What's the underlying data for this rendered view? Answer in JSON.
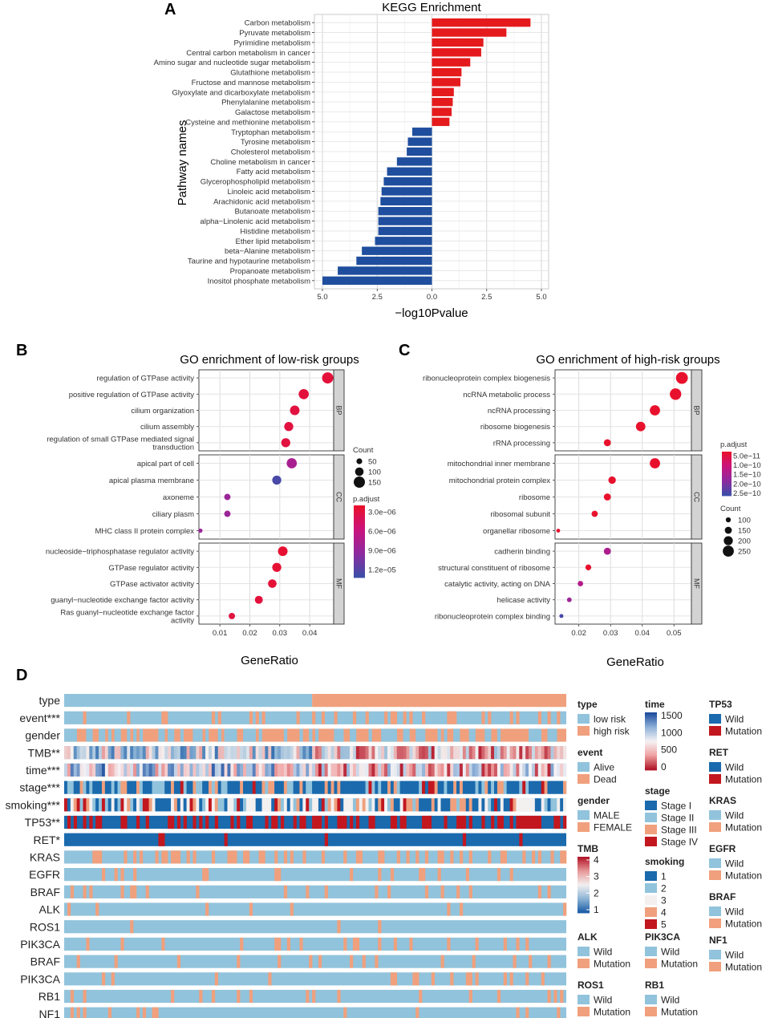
{
  "colors": {
    "kegg_pos": "#e41a1c",
    "kegg_neg": "#1f4e9e",
    "grid": "#dcdcdc",
    "panel_bg": "#ffffff",
    "strip_bg": "#d3d3d3",
    "low_risk": "#91c3dc",
    "high_risk": "#f0a07d",
    "wild": "#1a6aad",
    "mutation": "#c2171f",
    "light_blue": "#91c3dc",
    "salmon": "#f0a07d"
  },
  "panel_labels": {
    "a": "A",
    "b": "B",
    "c": "C",
    "d": "D"
  },
  "chart_data": [
    {
      "id": "kegg",
      "type": "bar",
      "orientation": "horizontal",
      "title": "KEGG Enrichment",
      "xlabel": "−log10Pvalue",
      "ylabel": "Pathway names",
      "xlim": [
        -5.0,
        5.0
      ],
      "xticks": [
        -5,
        -2.5,
        0,
        2.5,
        5
      ],
      "xtick_labels": [
        "5.0",
        "2.5",
        "0.0",
        "2.5",
        "5.0"
      ],
      "categories": [
        "Carbon metabolism",
        "Pyruvate metabolism",
        "Pyrimidine metabolism",
        "Central carbon metabolism in cancer",
        "Amino sugar and nucleotide sugar metabolism",
        "Glutathione metabolism",
        "Fructose and mannose metabolism",
        "Glyoxylate and dicarboxylate metabolism",
        "Phenylalanine metabolism",
        "Galactose metabolism",
        "Cysteine and methionine metabolism",
        "Tryptophan metabolism",
        "Tyrosine metabolism",
        "Cholesterol metabolism",
        "Choline metabolism in cancer",
        "Fatty acid metabolism",
        "Glycerophospholipid metabolism",
        "Linoleic acid metabolism",
        "Arachidonic acid metabolism",
        "Butanoate metabolism",
        "alpha−Linolenic acid metabolism",
        "Histidine metabolism",
        "Ether lipid metabolism",
        "beta−Alanine metabolism",
        "Taurine and hypotaurine metabolism",
        "Propanoate metabolism",
        "Inositol phosphate metabolism"
      ],
      "values": [
        4.5,
        3.4,
        2.35,
        2.25,
        1.75,
        1.35,
        1.3,
        1.0,
        0.95,
        0.9,
        0.8,
        -0.9,
        -1.1,
        -1.15,
        -1.6,
        -2.05,
        -2.2,
        -2.3,
        -2.35,
        -2.45,
        -2.45,
        -2.45,
        -2.6,
        -3.2,
        -3.45,
        -4.3,
        -5.0
      ]
    },
    {
      "id": "go_low",
      "type": "scatter",
      "title": "GO enrichment of low-risk groups",
      "xlabel": "GeneRatio",
      "xlim": [
        0.003,
        0.048
      ],
      "xticks": [
        0.01,
        0.02,
        0.03,
        0.04
      ],
      "xtick_labels": [
        "0.01",
        "0.02",
        "0.03",
        "0.04"
      ],
      "facets": [
        {
          "name": "BP",
          "terms": [
            {
              "label": [
                "regulation of GTPase activity"
              ],
              "x": 0.046,
              "count": 150,
              "padj": 3.5e-06
            },
            {
              "label": [
                "positive regulation of GTPase activity"
              ],
              "x": 0.038,
              "count": 130,
              "padj": 3.6e-06
            },
            {
              "label": [
                "cilium organization"
              ],
              "x": 0.035,
              "count": 120,
              "padj": 3.8e-06
            },
            {
              "label": [
                "cilium assembly"
              ],
              "x": 0.033,
              "count": 110,
              "padj": 3.8e-06
            },
            {
              "label": [
                "regulation of small GTPase mediated signal",
                "transduction"
              ],
              "x": 0.032,
              "count": 110,
              "padj": 3.8e-06
            }
          ]
        },
        {
          "name": "CC",
          "terms": [
            {
              "label": [
                "apical part of cell"
              ],
              "x": 0.034,
              "count": 130,
              "padj": 8.2e-06
            },
            {
              "label": [
                "apical plasma membrane"
              ],
              "x": 0.029,
              "count": 110,
              "padj": 1.25e-05
            },
            {
              "label": [
                "axoneme"
              ],
              "x": 0.0125,
              "count": 60,
              "padj": 9e-06
            },
            {
              "label": [
                "ciliary plasm"
              ],
              "x": 0.0125,
              "count": 60,
              "padj": 9e-06
            },
            {
              "label": [
                "MHC class II protein complex"
              ],
              "x": 0.0035,
              "count": 20,
              "padj": 9e-06
            }
          ]
        },
        {
          "name": "MF",
          "terms": [
            {
              "label": [
                "nucleoside−triphosphatase regulator activity"
              ],
              "x": 0.031,
              "count": 120,
              "padj": 3.2e-06
            },
            {
              "label": [
                "GTPase regulator activity"
              ],
              "x": 0.029,
              "count": 110,
              "padj": 3.3e-06
            },
            {
              "label": [
                "GTPase activator activity"
              ],
              "x": 0.0275,
              "count": 100,
              "padj": 3.4e-06
            },
            {
              "label": [
                "guanyl−nucleotide exchange factor activity"
              ],
              "x": 0.023,
              "count": 90,
              "padj": 3.6e-06
            },
            {
              "label": [
                "Ras guanyl−nucleotide exchange factor",
                "activity"
              ],
              "x": 0.014,
              "count": 60,
              "padj": 4e-06
            }
          ]
        }
      ],
      "size_legend": {
        "title": "Count",
        "values": [
          50,
          100,
          150
        ],
        "labels": [
          "50",
          "100",
          "150"
        ]
      },
      "color_legend": {
        "title": "p.adjust",
        "labels": [
          "3.0e−06",
          "6.0e−06",
          "9.0e−06",
          "1.2e−05"
        ],
        "min": 3e-06,
        "max": 1.3e-05
      }
    },
    {
      "id": "go_high",
      "type": "scatter",
      "title": "GO enrichment of high-risk groups",
      "xlabel": "GeneRatio",
      "xlim": [
        0.0125,
        0.0555
      ],
      "xticks": [
        0.02,
        0.03,
        0.04,
        0.05
      ],
      "xtick_labels": [
        "0.02",
        "0.03",
        "0.04",
        "0.05"
      ],
      "facets": [
        {
          "name": "BP",
          "terms": [
            {
              "label": [
                "ribonucleoprotein complex biogenesis"
              ],
              "x": 0.0525,
              "count": 270,
              "padj": 5e-11
            },
            {
              "label": [
                "ncRNA metabolic process"
              ],
              "x": 0.0505,
              "count": 260,
              "padj": 5e-11
            },
            {
              "label": [
                "ncRNA processing"
              ],
              "x": 0.044,
              "count": 230,
              "padj": 5e-11
            },
            {
              "label": [
                "ribosome biogenesis"
              ],
              "x": 0.0395,
              "count": 210,
              "padj": 5e-11
            },
            {
              "label": [
                "rRNA processing"
              ],
              "x": 0.029,
              "count": 150,
              "padj": 5e-11
            }
          ]
        },
        {
          "name": "CC",
          "terms": [
            {
              "label": [
                "mitochondrial inner membrane"
              ],
              "x": 0.044,
              "count": 230,
              "padj": 5e-11
            },
            {
              "label": [
                "mitochondrial protein complex"
              ],
              "x": 0.0305,
              "count": 160,
              "padj": 5e-11
            },
            {
              "label": [
                "ribosome"
              ],
              "x": 0.029,
              "count": 150,
              "padj": 5e-11
            },
            {
              "label": [
                "ribosomal subunit"
              ],
              "x": 0.025,
              "count": 130,
              "padj": 5e-11
            },
            {
              "label": [
                "organellar ribosome"
              ],
              "x": 0.0135,
              "count": 70,
              "padj": 5e-11
            }
          ]
        },
        {
          "name": "MF",
          "terms": [
            {
              "label": [
                "cadherin binding"
              ],
              "x": 0.029,
              "count": 150,
              "padj": 1.6e-10
            },
            {
              "label": [
                "structural constituent of ribosome"
              ],
              "x": 0.023,
              "count": 120,
              "padj": 5e-11
            },
            {
              "label": [
                "catalytic activity, acting on DNA"
              ],
              "x": 0.0205,
              "count": 110,
              "padj": 1.5e-10
            },
            {
              "label": [
                "helicase activity"
              ],
              "x": 0.017,
              "count": 90,
              "padj": 1.8e-10
            },
            {
              "label": [
                "ribonucleoprotein complex binding"
              ],
              "x": 0.0145,
              "count": 75,
              "padj": 2.6e-10
            }
          ]
        }
      ],
      "color_legend": {
        "title": "p.adjust",
        "labels": [
          "5.0e−11",
          "1.0e−10",
          "1.5e−10",
          "2.0e−10",
          "2.5e−10"
        ],
        "min": 5e-11,
        "max": 2.7e-10
      },
      "size_legend": {
        "title": "Count",
        "values": [
          100,
          150,
          200,
          250
        ],
        "labels": [
          "100",
          "150",
          "200",
          "250"
        ]
      }
    },
    {
      "id": "heatmap",
      "type": "heatmap",
      "row_labels": [
        "type",
        "event***",
        "gender",
        "TMB**",
        "time***",
        "stage***",
        "smoking***",
        "TP53**",
        "RET*",
        "KRAS",
        "EGFR",
        "BRAF",
        "ALK",
        "ROS1",
        "PIK3CA",
        "BRAF",
        "PIK3CA",
        "RB1",
        "NF1"
      ],
      "row_kinds": [
        "type",
        "event",
        "gender",
        "tmb",
        "time",
        "stage",
        "smoking",
        "tp53",
        "ret",
        "mut",
        "mut",
        "mut",
        "mut",
        "mut",
        "mut",
        "mut",
        "mut",
        "mut",
        "mut"
      ],
      "row_rates": [
        0,
        0.25,
        0.35,
        0,
        0,
        0,
        0,
        0.45,
        0.02,
        0.3,
        0.12,
        0.1,
        0.04,
        0.03,
        0.15,
        0.1,
        0.1,
        0.1,
        0.08
      ],
      "low_risk_fraction": 0.495,
      "legends": {
        "type": {
          "title": "type",
          "items": [
            "low risk",
            "high risk"
          ]
        },
        "event": {
          "title": "event",
          "items": [
            "Alive",
            "Dead"
          ]
        },
        "gender": {
          "title": "gender",
          "items": [
            "MALE",
            "FEMALE"
          ]
        },
        "tmb": {
          "title": "TMB",
          "ticks": [
            "4",
            "3",
            "2",
            "1"
          ]
        },
        "time": {
          "title": "time",
          "ticks": [
            "1500",
            "1000",
            "500",
            "0"
          ]
        },
        "stage": {
          "title": "stage",
          "items": [
            "Stage I",
            "Stage II",
            "Stage III",
            "Stage IV"
          ]
        },
        "smoking": {
          "title": "smoking",
          "items": [
            "1",
            "2",
            "3",
            "4",
            "5"
          ]
        },
        "alk": {
          "title": "ALK",
          "items": [
            "Wild",
            "Mutation"
          ]
        },
        "pik3ca": {
          "title": "PIK3CA",
          "items": [
            "Wild",
            "Mutation"
          ]
        },
        "ros1": {
          "title": "ROS1",
          "items": [
            "Wild",
            "Mutation"
          ]
        },
        "rb1": {
          "title": "RB1",
          "items": [
            "Wild",
            "Mutation"
          ]
        },
        "tp53": {
          "title": "TP53",
          "items": [
            "Wild",
            "Mutation"
          ]
        },
        "ret": {
          "title": "RET",
          "items": [
            "Wild",
            "Mutation"
          ]
        },
        "kras": {
          "title": "KRAS",
          "items": [
            "Wild",
            "Mutation"
          ]
        },
        "egfr": {
          "title": "EGFR",
          "items": [
            "Wild",
            "Mutation"
          ]
        },
        "braf": {
          "title": "BRAF",
          "items": [
            "Wild",
            "Mutation"
          ]
        },
        "nf1": {
          "title": "NF1",
          "items": [
            "Wild",
            "Mutation"
          ]
        }
      }
    }
  ]
}
